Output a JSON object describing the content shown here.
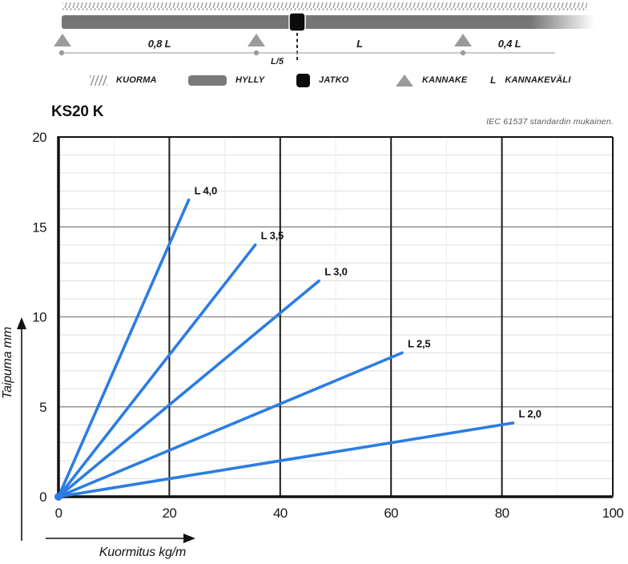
{
  "schematic": {
    "dimension_labels": {
      "span1": "0,8 L",
      "joint_offset": "L/5",
      "span2": "L",
      "span3": "0,4 L"
    },
    "legend": [
      {
        "icon": "load-hatch-icon",
        "label": "KUORMA"
      },
      {
        "icon": "shelf-bar-icon",
        "label": "HYLLY"
      },
      {
        "icon": "joint-square-icon",
        "label": "JATKO"
      },
      {
        "icon": "support-triangle-icon",
        "label": "KANNAKE"
      },
      {
        "icon": "spacing-letter-icon",
        "symbol": "L",
        "label": "KANNAKEVÄLI"
      }
    ]
  },
  "header": {
    "title": "KS20 K",
    "standard_note": "IEC 61537 standardin mukainen."
  },
  "chart_data": {
    "type": "line",
    "title": "KS20 K",
    "xlabel": "Kuormitus kg/m",
    "ylabel": "Taipuma mm",
    "xlim": [
      0,
      100
    ],
    "ylim": [
      0,
      20
    ],
    "x_ticks": [
      0,
      20,
      40,
      60,
      80,
      100
    ],
    "y_ticks": [
      0,
      5,
      10,
      15,
      20
    ],
    "minor_grid": {
      "x_step": 10,
      "y_step": 1
    },
    "grid": true,
    "legend_position": "inline-labels-at-line-ends",
    "series": [
      {
        "name": "L 4,0",
        "points": [
          [
            0,
            0
          ],
          [
            23.5,
            16.5
          ]
        ]
      },
      {
        "name": "L 3,5",
        "points": [
          [
            0,
            0
          ],
          [
            35.5,
            14.0
          ]
        ]
      },
      {
        "name": "L 3,0",
        "points": [
          [
            0,
            0
          ],
          [
            47.0,
            12.0
          ]
        ]
      },
      {
        "name": "L 2,5",
        "points": [
          [
            0,
            0
          ],
          [
            62.0,
            8.0
          ]
        ]
      },
      {
        "name": "L 2,0",
        "points": [
          [
            0,
            0
          ],
          [
            82.0,
            4.1
          ]
        ]
      }
    ],
    "line_color": "#2b7de3"
  },
  "colors": {
    "line_blue": "#2b7de3",
    "shelf_gray": "#757575",
    "support_gray": "#9b9b9b",
    "joint_black": "#0b0b0b",
    "minor_grid": "#dedede",
    "major_grid_h": "#929292",
    "major_grid_v": "#1c1c1c"
  }
}
